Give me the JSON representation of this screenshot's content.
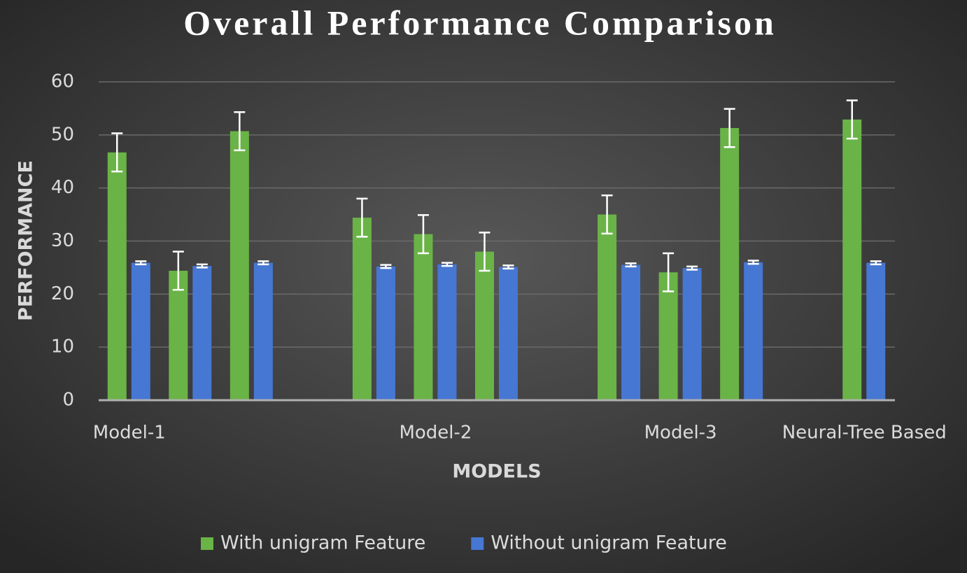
{
  "chart_data": {
    "type": "bar",
    "title": "Overall Performance Comparison",
    "x_label": "MODELS",
    "y_label": "PERFORMANCE",
    "categories": [
      "Model-1",
      null,
      null,
      null,
      null,
      "Model-2",
      null,
      null,
      null,
      "Model-3",
      null,
      null,
      "Neural-Tree Based"
    ],
    "series": [
      {
        "name": "With unigram Feature",
        "color": "#6ab347",
        "values": [
          46.7,
          24.4,
          50.7,
          null,
          34.4,
          31.3,
          28.0,
          null,
          35.0,
          24.1,
          51.3,
          null,
          52.9
        ],
        "errors": [
          3.6,
          3.6,
          3.6,
          null,
          3.6,
          3.6,
          3.6,
          null,
          3.6,
          3.6,
          3.6,
          null,
          3.6
        ]
      },
      {
        "name": "Without unigram Feature",
        "color": "#4677d3",
        "values": [
          25.9,
          25.3,
          25.9,
          null,
          25.2,
          25.6,
          25.1,
          null,
          25.5,
          24.9,
          26.0,
          null,
          25.9
        ],
        "errors": [
          0.3,
          0.3,
          0.3,
          null,
          0.3,
          0.3,
          0.3,
          null,
          0.3,
          0.3,
          0.3,
          null,
          0.3
        ]
      }
    ],
    "ylim": [
      0,
      60
    ],
    "yticks": [
      0,
      10,
      20,
      30,
      40,
      50,
      60
    ],
    "grid": true,
    "legend": "bottom"
  }
}
